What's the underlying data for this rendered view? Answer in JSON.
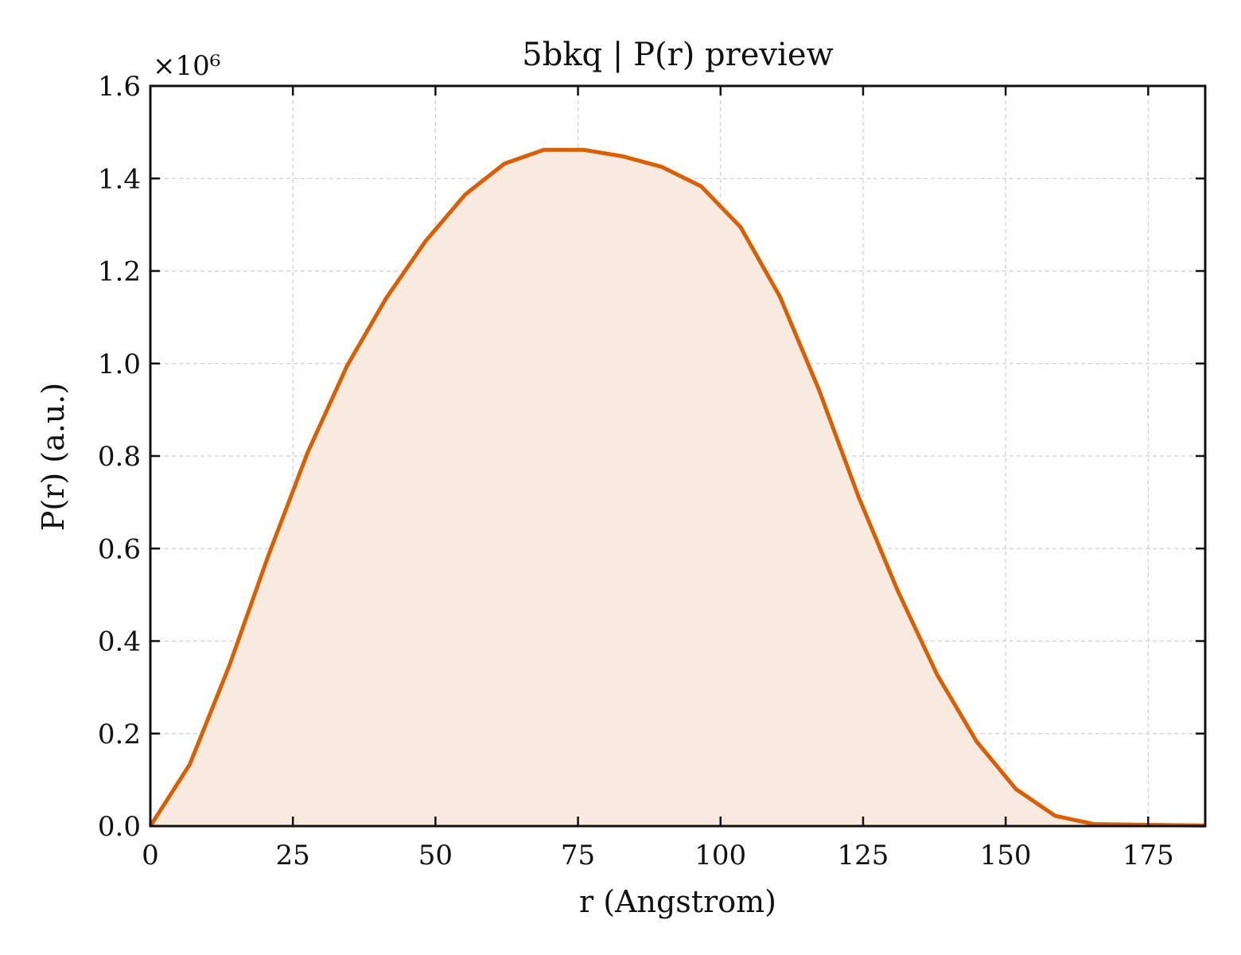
{
  "chart_data": {
    "type": "area",
    "title": "5bkq | P(r) preview",
    "xlabel": "r (Angstrom)",
    "ylabel": "P(r) (a.u.)",
    "y_multiplier": "×10⁶",
    "xlim": [
      0,
      185
    ],
    "ylim": [
      0,
      1.6
    ],
    "xticks": [
      0,
      25,
      50,
      75,
      100,
      125,
      150,
      175
    ],
    "yticks": [
      0.0,
      0.2,
      0.4,
      0.6,
      0.8,
      1.0,
      1.2,
      1.4,
      1.6
    ],
    "grid": true,
    "legend": "none",
    "line_color": "#d95f02",
    "fill_color": "#f9eadf",
    "series": [
      {
        "x": [
          0,
          6.9,
          13.8,
          20.7,
          27.6,
          34.5,
          41.4,
          48.3,
          55.2,
          62.1,
          69.0,
          75.9,
          82.8,
          89.7,
          96.6,
          103.5,
          110.4,
          117.3,
          124.2,
          131.1,
          138.0,
          144.9,
          151.8,
          158.7,
          165.6,
          172.5,
          179.4,
          185
        ],
        "y": [
          0.0,
          0.133,
          0.345,
          0.585,
          0.808,
          0.995,
          1.142,
          1.265,
          1.365,
          1.432,
          1.462,
          1.462,
          1.448,
          1.425,
          1.383,
          1.295,
          1.145,
          0.942,
          0.712,
          0.508,
          0.327,
          0.183,
          0.08,
          0.022,
          0.004,
          0.003,
          0.002,
          0.001
        ]
      }
    ]
  }
}
